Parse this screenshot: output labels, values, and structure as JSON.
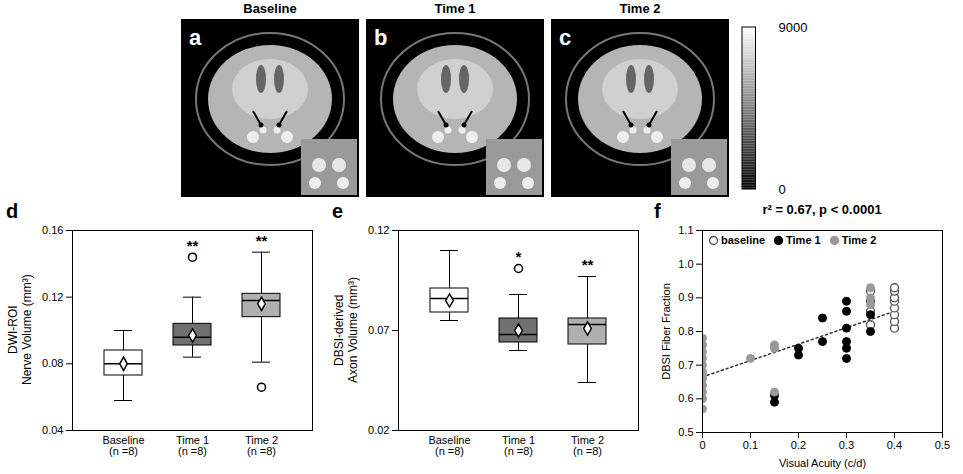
{
  "chart_data": [
    {
      "type": "image",
      "panel_label": "a",
      "title": "Baseline"
    },
    {
      "type": "image",
      "panel_label": "b",
      "title": "Time 1"
    },
    {
      "type": "image",
      "panel_label": "c",
      "title": "Time 2"
    },
    {
      "type": "colorbar",
      "ylim": [
        0,
        9000
      ],
      "yticks": [
        0,
        9000
      ]
    },
    {
      "type": "box",
      "panel_label": "d",
      "y_label": "DWI-ROI Nerve Volume (mm³)",
      "categories": [
        "Baseline (n =8)",
        "Time 1 (n =8)",
        "Time 2 (n =8)"
      ],
      "colors": [
        "#ffffff",
        "#707070",
        "#b0b0b0"
      ],
      "marker": "diamond",
      "boxes": [
        {
          "min": 0.058,
          "q1": 0.073,
          "median": 0.08,
          "q3": 0.088,
          "max": 0.1,
          "mean": 0.08,
          "outliers": []
        },
        {
          "min": 0.084,
          "q1": 0.091,
          "median": 0.096,
          "q3": 0.104,
          "max": 0.12,
          "mean": 0.097,
          "outliers": [
            0.144
          ]
        },
        {
          "min": 0.081,
          "q1": 0.108,
          "median": 0.118,
          "q3": 0.122,
          "max": 0.147,
          "mean": 0.116,
          "outliers": [
            0.066
          ]
        }
      ],
      "annotations": [
        {
          "category": "Time 1 (n =8)",
          "text": "**"
        },
        {
          "category": "Time 2 (n =8)",
          "text": "**"
        }
      ],
      "ylim": [
        0.04,
        0.16
      ],
      "yticks": [
        0.04,
        0.08,
        0.12,
        0.16
      ],
      "grid": false
    },
    {
      "type": "box",
      "panel_label": "e",
      "y_label": "DBSI-derived Axon Volume (mm³)",
      "categories": [
        "Baseline (n =8)",
        "Time 1 (n =8)",
        "Time 2 (n =8)"
      ],
      "colors": [
        "#ffffff",
        "#707070",
        "#b0b0b0"
      ],
      "marker": "diamond",
      "boxes": [
        {
          "min": 0.075,
          "q1": 0.079,
          "median": 0.086,
          "q3": 0.091,
          "max": 0.11,
          "mean": 0.085,
          "outliers": []
        },
        {
          "min": 0.06,
          "q1": 0.064,
          "median": 0.068,
          "q3": 0.076,
          "max": 0.088,
          "mean": 0.07,
          "outliers": [
            0.101
          ]
        },
        {
          "min": 0.044,
          "q1": 0.063,
          "median": 0.073,
          "q3": 0.076,
          "max": 0.097,
          "mean": 0.071,
          "outliers": []
        }
      ],
      "annotations": [
        {
          "category": "Time 1 (n =8)",
          "text": "*"
        },
        {
          "category": "Time 2 (n =8)",
          "text": "**"
        }
      ],
      "ylim": [
        0.02,
        0.12
      ],
      "yticks": [
        0.02,
        0.07,
        0.12
      ],
      "grid": false
    },
    {
      "type": "scatter",
      "panel_label": "f",
      "title": "r² = 0.67, p < 0.0001",
      "x_label": "Visual Acuity (c/d)",
      "y_label": "DBSI Fiber Fraction",
      "xlim": [
        0,
        0.5
      ],
      "xticks": [
        0,
        0.1,
        0.2,
        0.3,
        0.4,
        0.5
      ],
      "ylim": [
        0.5,
        1.1
      ],
      "yticks": [
        0.5,
        0.6,
        0.7,
        0.8,
        0.9,
        {
          "value": 1,
          "label": "1.0"
        },
        1.1
      ],
      "legend": "top-left",
      "grid": false,
      "series": [
        {
          "name": "baseline",
          "color": "#555555",
          "marker": "open circle",
          "x": [
            0.35,
            0.35,
            0.35,
            0.35,
            0.4,
            0.4,
            0.4,
            0.4,
            0.4,
            0.4,
            0.4,
            0.4
          ],
          "values": [
            0.82,
            0.86,
            0.89,
            0.92,
            0.81,
            0.83,
            0.85,
            0.87,
            0.89,
            0.9,
            0.92,
            0.93
          ]
        },
        {
          "name": "Time 1",
          "color": "#000000",
          "marker": "circle",
          "x": [
            0.15,
            0.15,
            0.2,
            0.2,
            0.25,
            0.25,
            0.3,
            0.3,
            0.3,
            0.3,
            0.3,
            0.3,
            0.35,
            0.35
          ],
          "values": [
            0.59,
            0.61,
            0.73,
            0.75,
            0.77,
            0.84,
            0.72,
            0.75,
            0.77,
            0.81,
            0.86,
            0.89,
            0.8,
            0.85
          ]
        },
        {
          "name": "Time 2",
          "color": "#999999",
          "marker": "circle",
          "x": [
            0,
            0,
            0,
            0,
            0,
            0,
            0,
            0,
            0,
            0,
            0,
            0,
            0.1,
            0.15,
            0.15,
            0.15,
            0.35,
            0.35,
            0.35
          ],
          "values": [
            0.57,
            0.6,
            0.62,
            0.64,
            0.66,
            0.67,
            0.68,
            0.7,
            0.72,
            0.74,
            0.76,
            0.78,
            0.72,
            0.62,
            0.75,
            0.76,
            0.88,
            0.9,
            0.93
          ]
        }
      ],
      "fit_line": {
        "x": [
          0,
          0.4
        ],
        "values": [
          0.665,
          0.86
        ],
        "line_style": "dotted"
      }
    }
  ]
}
